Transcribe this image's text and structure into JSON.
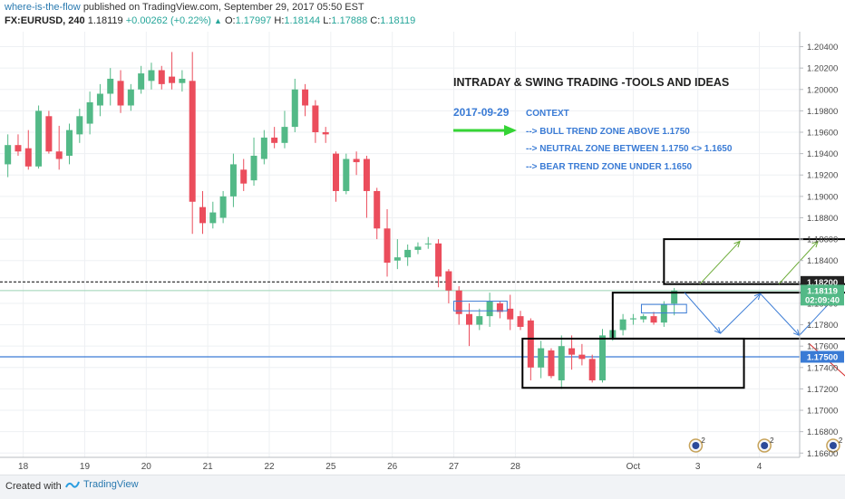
{
  "header": {
    "author": "where-is-the-flow",
    "published": "published on TradingView.com, September 29, 2017 05:50 EST",
    "symbol": "FX:EURUSD, 240",
    "last": "1.18119",
    "change": "+0.00262 (+0.22%)",
    "open_label": "O:",
    "open": "1.17997",
    "high_label": "H:",
    "high": "1.18144",
    "low_label": "L:",
    "low": "1.17888",
    "close_label": "C:",
    "close": "1.18119"
  },
  "annotations": {
    "title": "INTRADAY  & SWING TRADING -TOOLS AND IDEAS",
    "date": "2017-09-29",
    "context": "CONTEXT",
    "line1": "--> BULL TREND ZONE ABOVE 1.1750",
    "line2": "--> NEUTRAL ZONE BETWEEN 1.1750 <> 1.1650",
    "line3": "--> BEAR TREND ZONE UNDER 1.1650"
  },
  "footer": {
    "created": "Created with",
    "brand": "TradingView"
  },
  "colors": {
    "up": "#53b987",
    "down": "#eb4d5c",
    "accent": "#3a7bd5",
    "arrow": "#35d435"
  },
  "chart_data": {
    "type": "candlestick",
    "symbol": "FX:EURUSD",
    "timeframe": "240",
    "ylim": [
      1.1656,
      1.2054
    ],
    "y_ticks": [
      "1.20400",
      "1.20200",
      "1.20000",
      "1.19800",
      "1.19600",
      "1.19400",
      "1.19200",
      "1.19000",
      "1.18800",
      "1.18600",
      "1.18400",
      "1.18200",
      "1.18000",
      "1.17800",
      "1.17600",
      "1.17400",
      "1.17200",
      "1.17000",
      "1.16800",
      "1.16600"
    ],
    "x_ticks": [
      {
        "label": "18",
        "i": 1.5
      },
      {
        "label": "19",
        "i": 7.5
      },
      {
        "label": "20",
        "i": 13.5
      },
      {
        "label": "21",
        "i": 19.5
      },
      {
        "label": "22",
        "i": 25.5
      },
      {
        "label": "25",
        "i": 31.5
      },
      {
        "label": "26",
        "i": 37.5
      },
      {
        "label": "27",
        "i": 43.5
      },
      {
        "label": "28",
        "i": 49.5
      },
      {
        "label": "Oct",
        "i": 61
      },
      {
        "label": "3",
        "i": 67.3
      },
      {
        "label": "4",
        "i": 73.3
      }
    ],
    "x_count": 78,
    "price_labels": [
      {
        "value": 1.182,
        "text": "1.18200",
        "style": "dark"
      },
      {
        "value": 1.18119,
        "text": "1.18119",
        "style": "green"
      },
      {
        "value": 1.18035,
        "text": "02:09:40",
        "style": "green"
      },
      {
        "value": 1.175,
        "text": "1.17500",
        "style": "blue"
      }
    ],
    "hlines": [
      {
        "value": 1.182,
        "style": "dotted"
      },
      {
        "value": 1.175,
        "style": "blue"
      }
    ],
    "candles": [
      [
        1.193,
        1.1958,
        1.1918,
        1.1948
      ],
      [
        1.1948,
        1.1958,
        1.1938,
        1.1942
      ],
      [
        1.1945,
        1.1962,
        1.1925,
        1.1928
      ],
      [
        1.1928,
        1.1985,
        1.1926,
        1.198
      ],
      [
        1.1975,
        1.198,
        1.194,
        1.1942
      ],
      [
        1.1942,
        1.1966,
        1.1925,
        1.1935
      ],
      [
        1.1938,
        1.1968,
        1.193,
        1.1962
      ],
      [
        1.1958,
        1.1982,
        1.195,
        1.1975
      ],
      [
        1.1968,
        1.1998,
        1.1958,
        1.1988
      ],
      [
        1.1985,
        1.2005,
        1.1975,
        1.1996
      ],
      [
        1.1996,
        1.202,
        1.1985,
        1.201
      ],
      [
        1.2008,
        1.2018,
        1.1978,
        1.1985
      ],
      [
        1.1985,
        1.2005,
        1.198,
        1.2
      ],
      [
        1.2,
        1.2022,
        1.1996,
        1.2015
      ],
      [
        1.2008,
        1.2025,
        1.2,
        1.2018
      ],
      [
        1.2018,
        1.2022,
        1.2,
        1.2005
      ],
      [
        1.2012,
        1.2035,
        1.2,
        1.2006
      ],
      [
        1.2006,
        1.2018,
        1.1998,
        1.201
      ],
      [
        1.2008,
        1.2035,
        1.1865,
        1.1895
      ],
      [
        1.189,
        1.1905,
        1.1865,
        1.1875
      ],
      [
        1.1875,
        1.1895,
        1.187,
        1.1885
      ],
      [
        1.188,
        1.1905,
        1.1875,
        1.19
      ],
      [
        1.19,
        1.194,
        1.189,
        1.193
      ],
      [
        1.1925,
        1.1935,
        1.1905,
        1.1912
      ],
      [
        1.1915,
        1.1955,
        1.191,
        1.1938
      ],
      [
        1.1935,
        1.1962,
        1.193,
        1.1955
      ],
      [
        1.1955,
        1.1965,
        1.1945,
        1.195
      ],
      [
        1.195,
        1.198,
        1.1945,
        1.1965
      ],
      [
        1.1965,
        1.201,
        1.196,
        1.2
      ],
      [
        1.2,
        1.2005,
        1.1975,
        1.1985
      ],
      [
        1.1985,
        1.199,
        1.195,
        1.196
      ],
      [
        1.196,
        1.1965,
        1.195,
        1.1958
      ],
      [
        1.194,
        1.1942,
        1.1895,
        1.1905
      ],
      [
        1.1905,
        1.194,
        1.1902,
        1.1935
      ],
      [
        1.1935,
        1.1942,
        1.192,
        1.1932
      ],
      [
        1.1935,
        1.1938,
        1.188,
        1.1905
      ],
      [
        1.1905,
        1.1908,
        1.186,
        1.187
      ],
      [
        1.187,
        1.1888,
        1.1825,
        1.1838
      ],
      [
        1.184,
        1.186,
        1.1832,
        1.1843
      ],
      [
        1.1843,
        1.1855,
        1.1835,
        1.185
      ],
      [
        1.185,
        1.1857,
        1.1846,
        1.1853
      ],
      [
        1.1856,
        1.1862,
        1.1851,
        1.1856
      ],
      [
        1.1856,
        1.186,
        1.1815,
        1.1825
      ],
      [
        1.183,
        1.1832,
        1.18,
        1.1812
      ],
      [
        1.1812,
        1.1816,
        1.178,
        1.179
      ],
      [
        1.179,
        1.18,
        1.176,
        1.178
      ],
      [
        1.178,
        1.1795,
        1.1775,
        1.1788
      ],
      [
        1.1788,
        1.181,
        1.1778,
        1.1802
      ],
      [
        1.18,
        1.1802,
        1.1786,
        1.1792
      ],
      [
        1.1795,
        1.1808,
        1.1775,
        1.1785
      ],
      [
        1.1788,
        1.1793,
        1.1775,
        1.1778
      ],
      [
        1.1784,
        1.1786,
        1.1728,
        1.174
      ],
      [
        1.174,
        1.1765,
        1.173,
        1.1758
      ],
      [
        1.1756,
        1.1758,
        1.173,
        1.1732
      ],
      [
        1.1728,
        1.177,
        1.172,
        1.176
      ],
      [
        1.1758,
        1.177,
        1.1738,
        1.1752
      ],
      [
        1.1752,
        1.1762,
        1.1742,
        1.1748
      ],
      [
        1.1748,
        1.1752,
        1.1726,
        1.1728
      ],
      [
        1.1728,
        1.1776,
        1.1726,
        1.177
      ],
      [
        1.1768,
        1.178,
        1.1765,
        1.1775
      ],
      [
        1.1775,
        1.179,
        1.177,
        1.1785
      ],
      [
        1.1785,
        1.179,
        1.178,
        1.1786
      ],
      [
        1.1785,
        1.179,
        1.1782,
        1.1788
      ],
      [
        1.1788,
        1.1792,
        1.178,
        1.1782
      ],
      [
        1.1782,
        1.1802,
        1.1778,
        1.1799
      ],
      [
        1.17997,
        1.18144,
        1.17888,
        1.18119
      ]
    ],
    "boxes": [
      {
        "i0": 43.5,
        "i1": 48.7,
        "y0": 1.1793,
        "y1": 1.1802,
        "color": "#3a7bd5",
        "width": 1
      },
      {
        "i0": 61.8,
        "i1": 66.2,
        "y0": 1.1791,
        "y1": 1.1799,
        "color": "#3a7bd5",
        "width": 1
      },
      {
        "i0": 50.2,
        "i1": 71.8,
        "y0": 1.1721,
        "y1": 1.1767,
        "color": "#000000",
        "width": 2
      },
      {
        "i0": 59.0,
        "i1": 81.8,
        "y0": 1.1767,
        "y1": 1.181,
        "color": "#000000",
        "width": 2
      },
      {
        "i0": 64.0,
        "i1": 86.0,
        "y0": 1.1818,
        "y1": 1.186,
        "color": "#000000",
        "width": 2
      }
    ],
    "rays": [
      {
        "i0": 67.5,
        "y0": 1.1818,
        "i1": 71.4,
        "y1": 1.1858,
        "color": "#6aaa35"
      },
      {
        "i0": 75.2,
        "y0": 1.1818,
        "i1": 79.0,
        "y1": 1.1858,
        "color": "#6aaa35"
      },
      {
        "i0": 82.0,
        "y0": 1.1816,
        "i1": 86.0,
        "y1": 1.1858,
        "color": "#6aaa35"
      },
      {
        "i0": 66.0,
        "y0": 1.181,
        "i1": 69.5,
        "y1": 1.1772,
        "color": "#3a7bd5"
      },
      {
        "i0": 69.5,
        "y0": 1.1772,
        "i1": 73.4,
        "y1": 1.1809,
        "color": "#3a7bd5"
      },
      {
        "i0": 73.4,
        "y0": 1.1809,
        "i1": 77.2,
        "y1": 1.177,
        "color": "#3a7bd5"
      },
      {
        "i0": 77.2,
        "y0": 1.177,
        "i1": 81.0,
        "y1": 1.1809,
        "color": "#3a7bd5"
      },
      {
        "i0": 78.2,
        "y0": 1.1762,
        "i1": 82.5,
        "y1": 1.1725,
        "color": "#d42a2a"
      }
    ],
    "events": [
      67.1,
      73.8,
      80.5,
      85.3,
      86.2,
      87.6
    ]
  }
}
